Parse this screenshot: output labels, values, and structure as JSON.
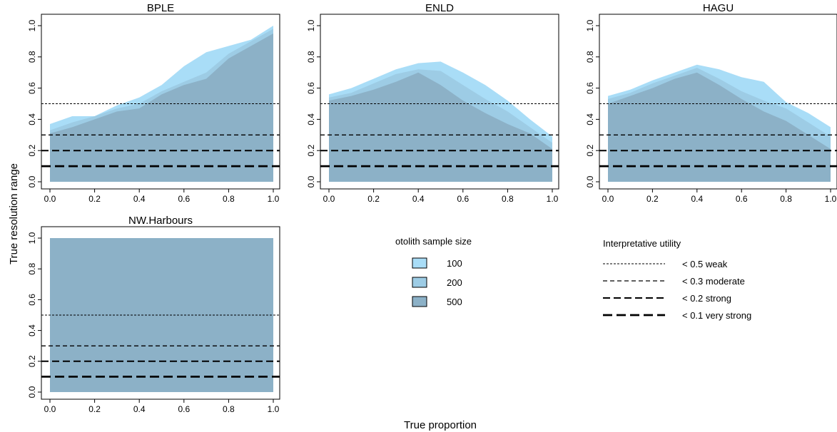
{
  "figure": {
    "ylabel": "True resolution range",
    "xlabel": "True proportion"
  },
  "legend_sample": {
    "title": "otolith sample size",
    "entries": [
      {
        "label": "100",
        "color": "#A9DDF7"
      },
      {
        "label": "200",
        "color": "#9DCCE5"
      },
      {
        "label": "500",
        "color": "#8CB1C7"
      }
    ]
  },
  "legend_utility": {
    "title": "Interpretative utility",
    "entries": [
      {
        "label": "< 0.5 weak",
        "y": 0.5
      },
      {
        "label": "< 0.3 moderate",
        "y": 0.3
      },
      {
        "label": "< 0.2 strong",
        "y": 0.2
      },
      {
        "label": "< 0.1 very strong",
        "y": 0.1
      }
    ]
  },
  "chart_data": [
    {
      "type": "area",
      "title": "BPLE",
      "x": [
        0,
        0.1,
        0.2,
        0.3,
        0.4,
        0.5,
        0.6,
        0.7,
        0.8,
        0.9,
        1.0
      ],
      "xlim": [
        0,
        1
      ],
      "ylim": [
        0,
        1
      ],
      "xticks": [
        "0.0",
        "0.2",
        "0.4",
        "0.6",
        "0.8",
        "1.0"
      ],
      "yticks": [
        "0.0",
        "0.2",
        "0.4",
        "0.6",
        "0.8",
        "1.0"
      ],
      "reference_lines": [
        0.5,
        0.3,
        0.2,
        0.1
      ],
      "series": [
        {
          "name": "100",
          "values": [
            0.37,
            0.42,
            0.42,
            0.49,
            0.54,
            0.62,
            0.74,
            0.83,
            0.87,
            0.91,
            1.0
          ]
        },
        {
          "name": "200",
          "values": [
            0.33,
            0.38,
            0.42,
            0.47,
            0.5,
            0.58,
            0.64,
            0.7,
            0.82,
            0.9,
            0.98
          ]
        },
        {
          "name": "500",
          "values": [
            0.31,
            0.35,
            0.4,
            0.45,
            0.47,
            0.56,
            0.62,
            0.66,
            0.79,
            0.87,
            0.95
          ]
        }
      ]
    },
    {
      "type": "area",
      "title": "ENLD",
      "x": [
        0,
        0.1,
        0.2,
        0.3,
        0.4,
        0.5,
        0.6,
        0.7,
        0.8,
        0.9,
        1.0
      ],
      "xlim": [
        0,
        1
      ],
      "ylim": [
        0,
        1
      ],
      "xticks": [
        "0.0",
        "0.2",
        "0.4",
        "0.6",
        "0.8",
        "1.0"
      ],
      "yticks": [
        "0.0",
        "0.2",
        "0.4",
        "0.6",
        "0.8",
        "1.0"
      ],
      "reference_lines": [
        0.5,
        0.3,
        0.2,
        0.1
      ],
      "series": [
        {
          "name": "100",
          "values": [
            0.56,
            0.6,
            0.66,
            0.72,
            0.76,
            0.77,
            0.7,
            0.62,
            0.52,
            0.4,
            0.29
          ]
        },
        {
          "name": "200",
          "values": [
            0.54,
            0.57,
            0.63,
            0.69,
            0.72,
            0.71,
            0.62,
            0.53,
            0.45,
            0.35,
            0.25
          ]
        },
        {
          "name": "500",
          "values": [
            0.52,
            0.55,
            0.59,
            0.64,
            0.7,
            0.62,
            0.52,
            0.44,
            0.37,
            0.31,
            0.21
          ]
        }
      ]
    },
    {
      "type": "area",
      "title": "HAGU",
      "x": [
        0,
        0.1,
        0.2,
        0.3,
        0.4,
        0.5,
        0.6,
        0.7,
        0.8,
        0.9,
        1.0
      ],
      "xlim": [
        0,
        1
      ],
      "ylim": [
        0,
        1
      ],
      "xticks": [
        "0.0",
        "0.2",
        "0.4",
        "0.6",
        "0.8",
        "1.0"
      ],
      "yticks": [
        "0.0",
        "0.2",
        "0.4",
        "0.6",
        "0.8",
        "1.0"
      ],
      "reference_lines": [
        0.5,
        0.3,
        0.2,
        0.1
      ],
      "series": [
        {
          "name": "100",
          "values": [
            0.55,
            0.59,
            0.65,
            0.7,
            0.75,
            0.72,
            0.67,
            0.64,
            0.51,
            0.44,
            0.35
          ]
        },
        {
          "name": "200",
          "values": [
            0.53,
            0.57,
            0.63,
            0.68,
            0.73,
            0.66,
            0.58,
            0.52,
            0.47,
            0.38,
            0.29
          ]
        },
        {
          "name": "500",
          "values": [
            0.5,
            0.55,
            0.6,
            0.66,
            0.7,
            0.62,
            0.53,
            0.45,
            0.39,
            0.3,
            0.21
          ]
        }
      ]
    },
    {
      "type": "area",
      "title": "NW.Harbours",
      "x": [
        0,
        0.1,
        0.2,
        0.3,
        0.4,
        0.5,
        0.6,
        0.7,
        0.8,
        0.9,
        1.0
      ],
      "xlim": [
        0,
        1
      ],
      "ylim": [
        0,
        1
      ],
      "xticks": [
        "0.0",
        "0.2",
        "0.4",
        "0.6",
        "0.8",
        "1.0"
      ],
      "yticks": [
        "0.0",
        "0.2",
        "0.4",
        "0.6",
        "0.8",
        "1.0"
      ],
      "reference_lines": [
        0.5,
        0.3,
        0.2,
        0.1
      ],
      "series": [
        {
          "name": "100",
          "values": [
            1,
            1,
            1,
            1,
            1,
            1,
            1,
            1,
            1,
            1,
            1
          ]
        },
        {
          "name": "200",
          "values": [
            1,
            1,
            1,
            1,
            1,
            1,
            1,
            1,
            1,
            1,
            1
          ]
        },
        {
          "name": "500",
          "values": [
            1,
            1,
            1,
            1,
            1,
            1,
            1,
            1,
            1,
            1,
            1
          ]
        }
      ]
    }
  ]
}
